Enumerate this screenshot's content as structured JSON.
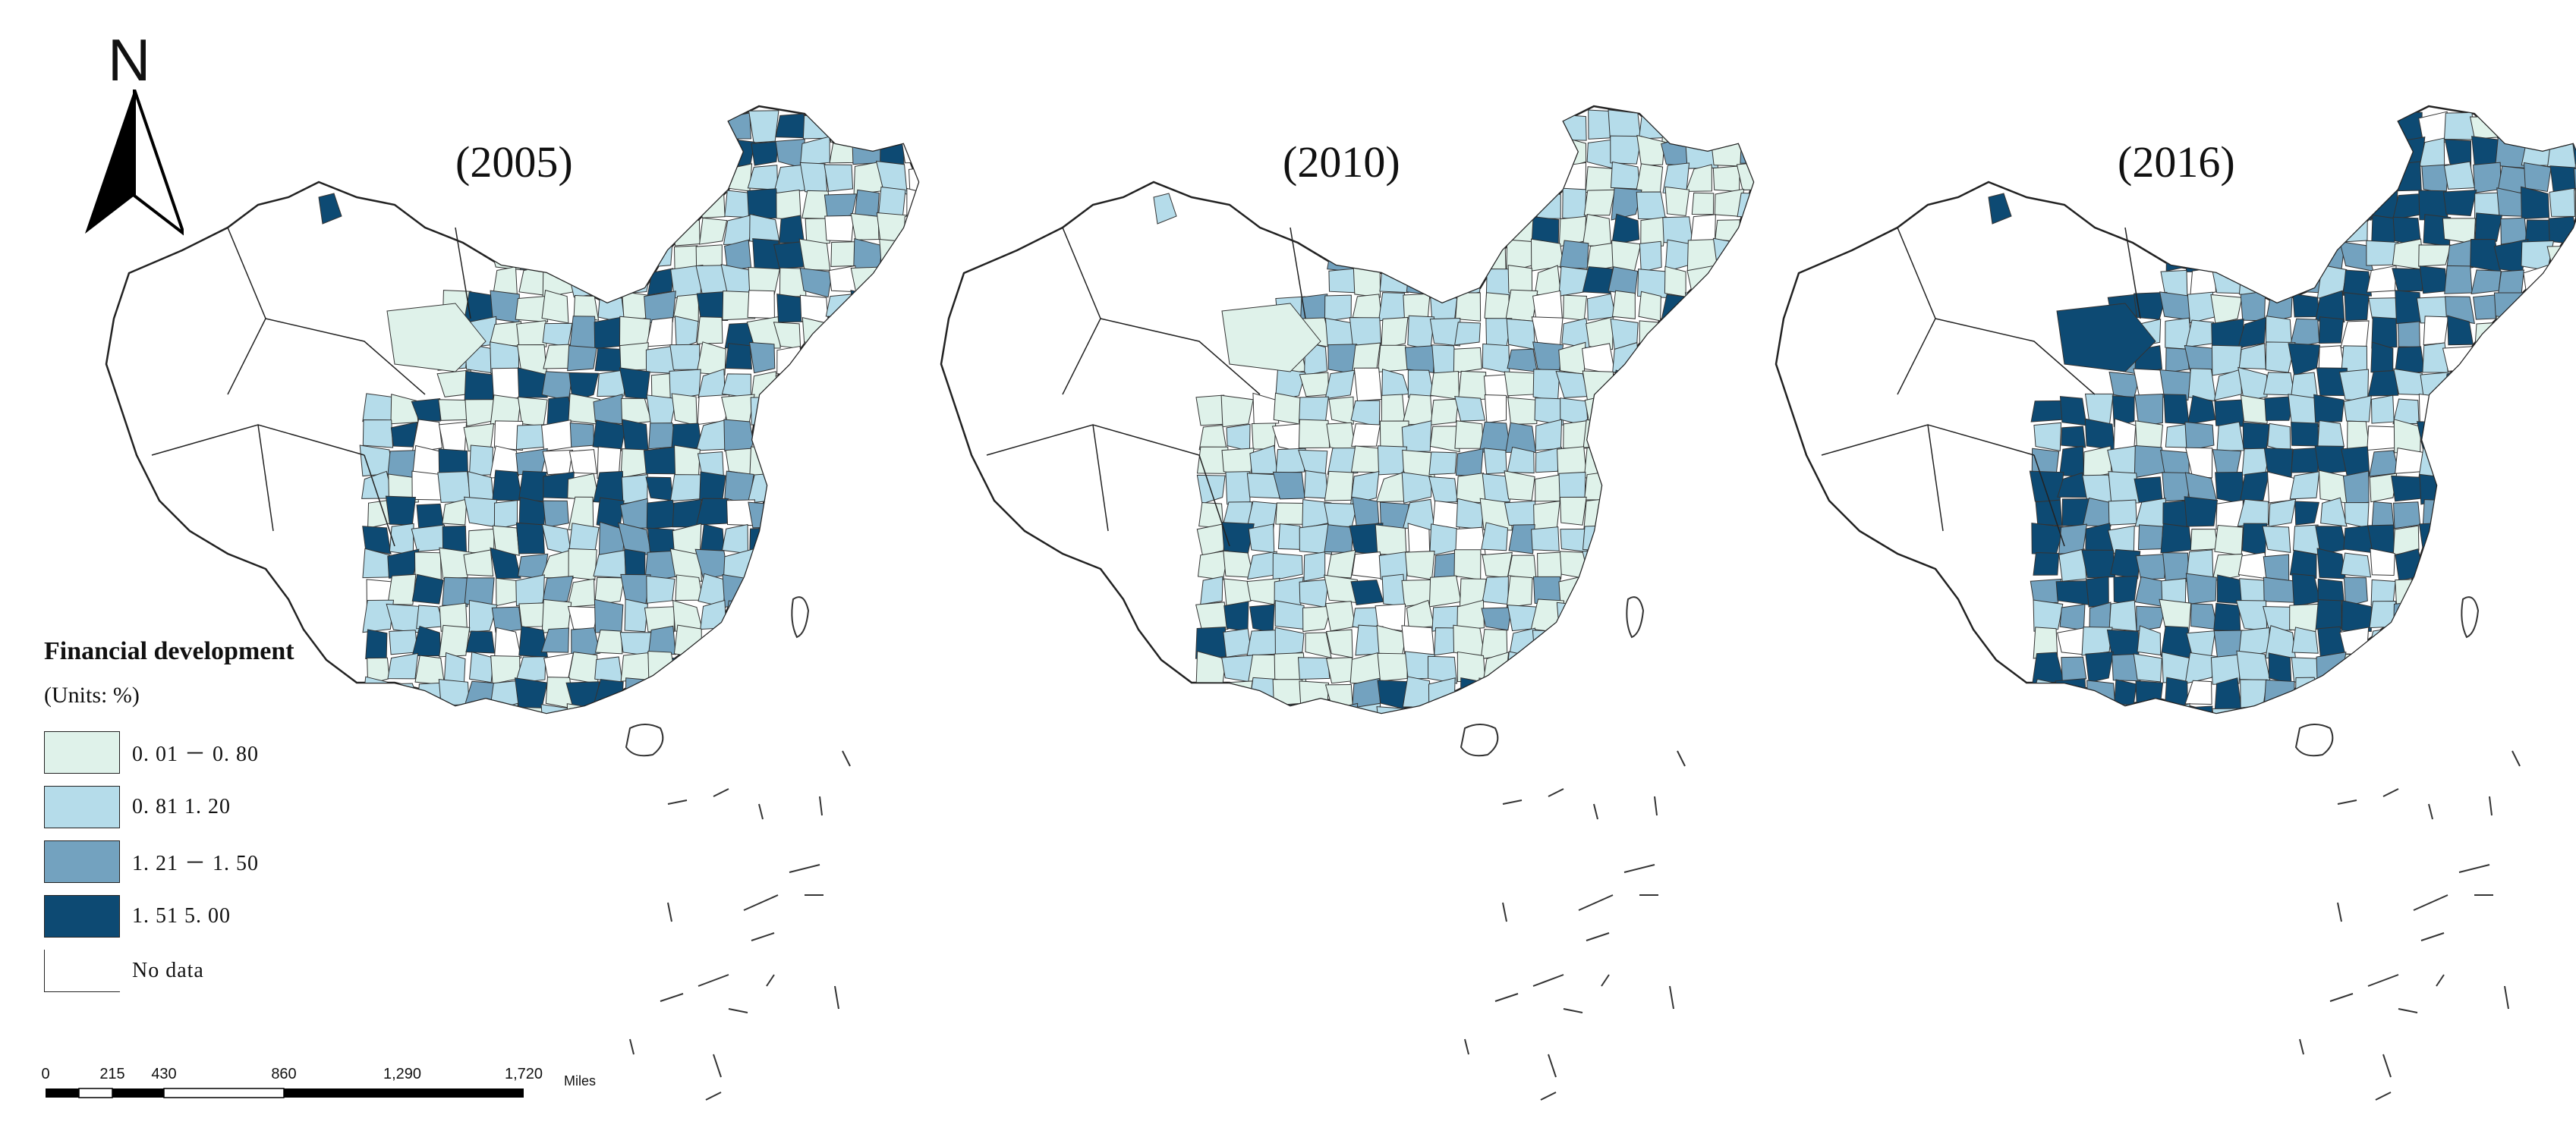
{
  "maps": [
    {
      "year_label": "(2005)"
    },
    {
      "year_label": "(2010)"
    },
    {
      "year_label": "(2016)"
    }
  ],
  "north_arrow": {
    "letter": "N",
    "icon": "north-arrow-icon"
  },
  "legend": {
    "title": "Financial development",
    "units": "(Units: %)",
    "classes": [
      {
        "label": "0. 01 － 0. 80",
        "color": "#dff2ea"
      },
      {
        "label": "0. 81    1. 20",
        "color": "#b5dcea"
      },
      {
        "label": "1. 21 － 1. 50",
        "color": "#73a2bf"
      },
      {
        "label": "1. 51    5. 00",
        "color": "#0d4a73"
      }
    ],
    "no_data": {
      "label": "No data",
      "color": "#ffffff"
    }
  },
  "scale_bar": {
    "ticks": [
      "0",
      "215",
      "430",
      "860",
      "1,290",
      "1,720"
    ],
    "unit": "Miles"
  }
}
